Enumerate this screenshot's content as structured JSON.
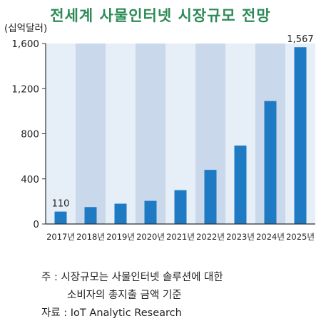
{
  "notes": {
    "line1": "주 : 시장규모는 사물인터넷 솔루션에 대한",
    "line2": "소비자의 총지출 금액 기준",
    "source": "자료 : IoT Analytic Research"
  },
  "chart_data": {
    "type": "bar",
    "title": "전세계 사물인터넷 시장규모 전망",
    "ylabel": "(십억달러)",
    "xlabel": "",
    "categories": [
      "2017년",
      "2018년",
      "2019년",
      "2020년",
      "2021년",
      "2022년",
      "2023년",
      "2024년",
      "2025년"
    ],
    "values": [
      110,
      150,
      180,
      205,
      300,
      480,
      695,
      1090,
      1567
    ],
    "data_labels": {
      "0": "110",
      "8": "1,567"
    },
    "ylim": [
      0,
      1600
    ],
    "yticks": [
      0,
      400,
      800,
      1200,
      1600
    ],
    "ytick_labels": [
      "0",
      "400",
      "800",
      "1,200",
      "1,600"
    ],
    "grid": false,
    "colors": {
      "bar": "#1f7ac4",
      "band_light": "#e6eef7",
      "band_dark": "#c9d8ea",
      "title": "#2e8b57",
      "axis": "#333333"
    }
  }
}
